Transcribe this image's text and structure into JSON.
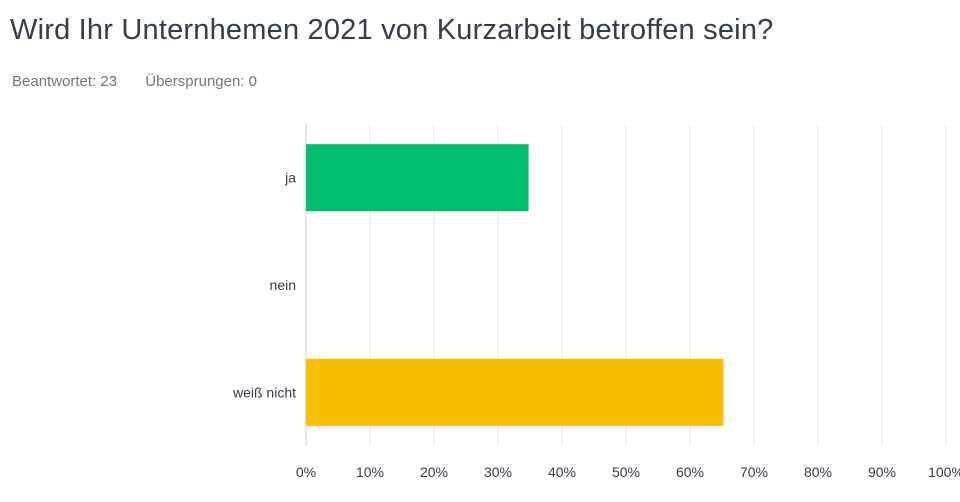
{
  "question": {
    "title": "Wird Ihr Unternhemen 2021 von Kurzarbeit betroffen sein?",
    "answered_label": "Beantwortet: 23",
    "skipped_label": "Übersprungen: 0"
  },
  "colors": {
    "ja": "#00bf6f",
    "nein": "#507cb6",
    "weiss_nicht": "#f9be00",
    "grid": "#e6e6e6",
    "axis": "#d0d0d0"
  },
  "chart_data": {
    "type": "bar",
    "orientation": "horizontal",
    "categories": [
      "ja",
      "nein",
      "weiß nicht"
    ],
    "values": [
      34.78,
      0,
      65.22
    ],
    "unit": "%",
    "xlim": [
      0,
      100
    ],
    "ticks": [
      "0%",
      "10%",
      "20%",
      "30%",
      "40%",
      "50%",
      "60%",
      "70%",
      "80%",
      "90%",
      "100%"
    ],
    "grid": true,
    "title": "",
    "xlabel": "",
    "ylabel": ""
  }
}
